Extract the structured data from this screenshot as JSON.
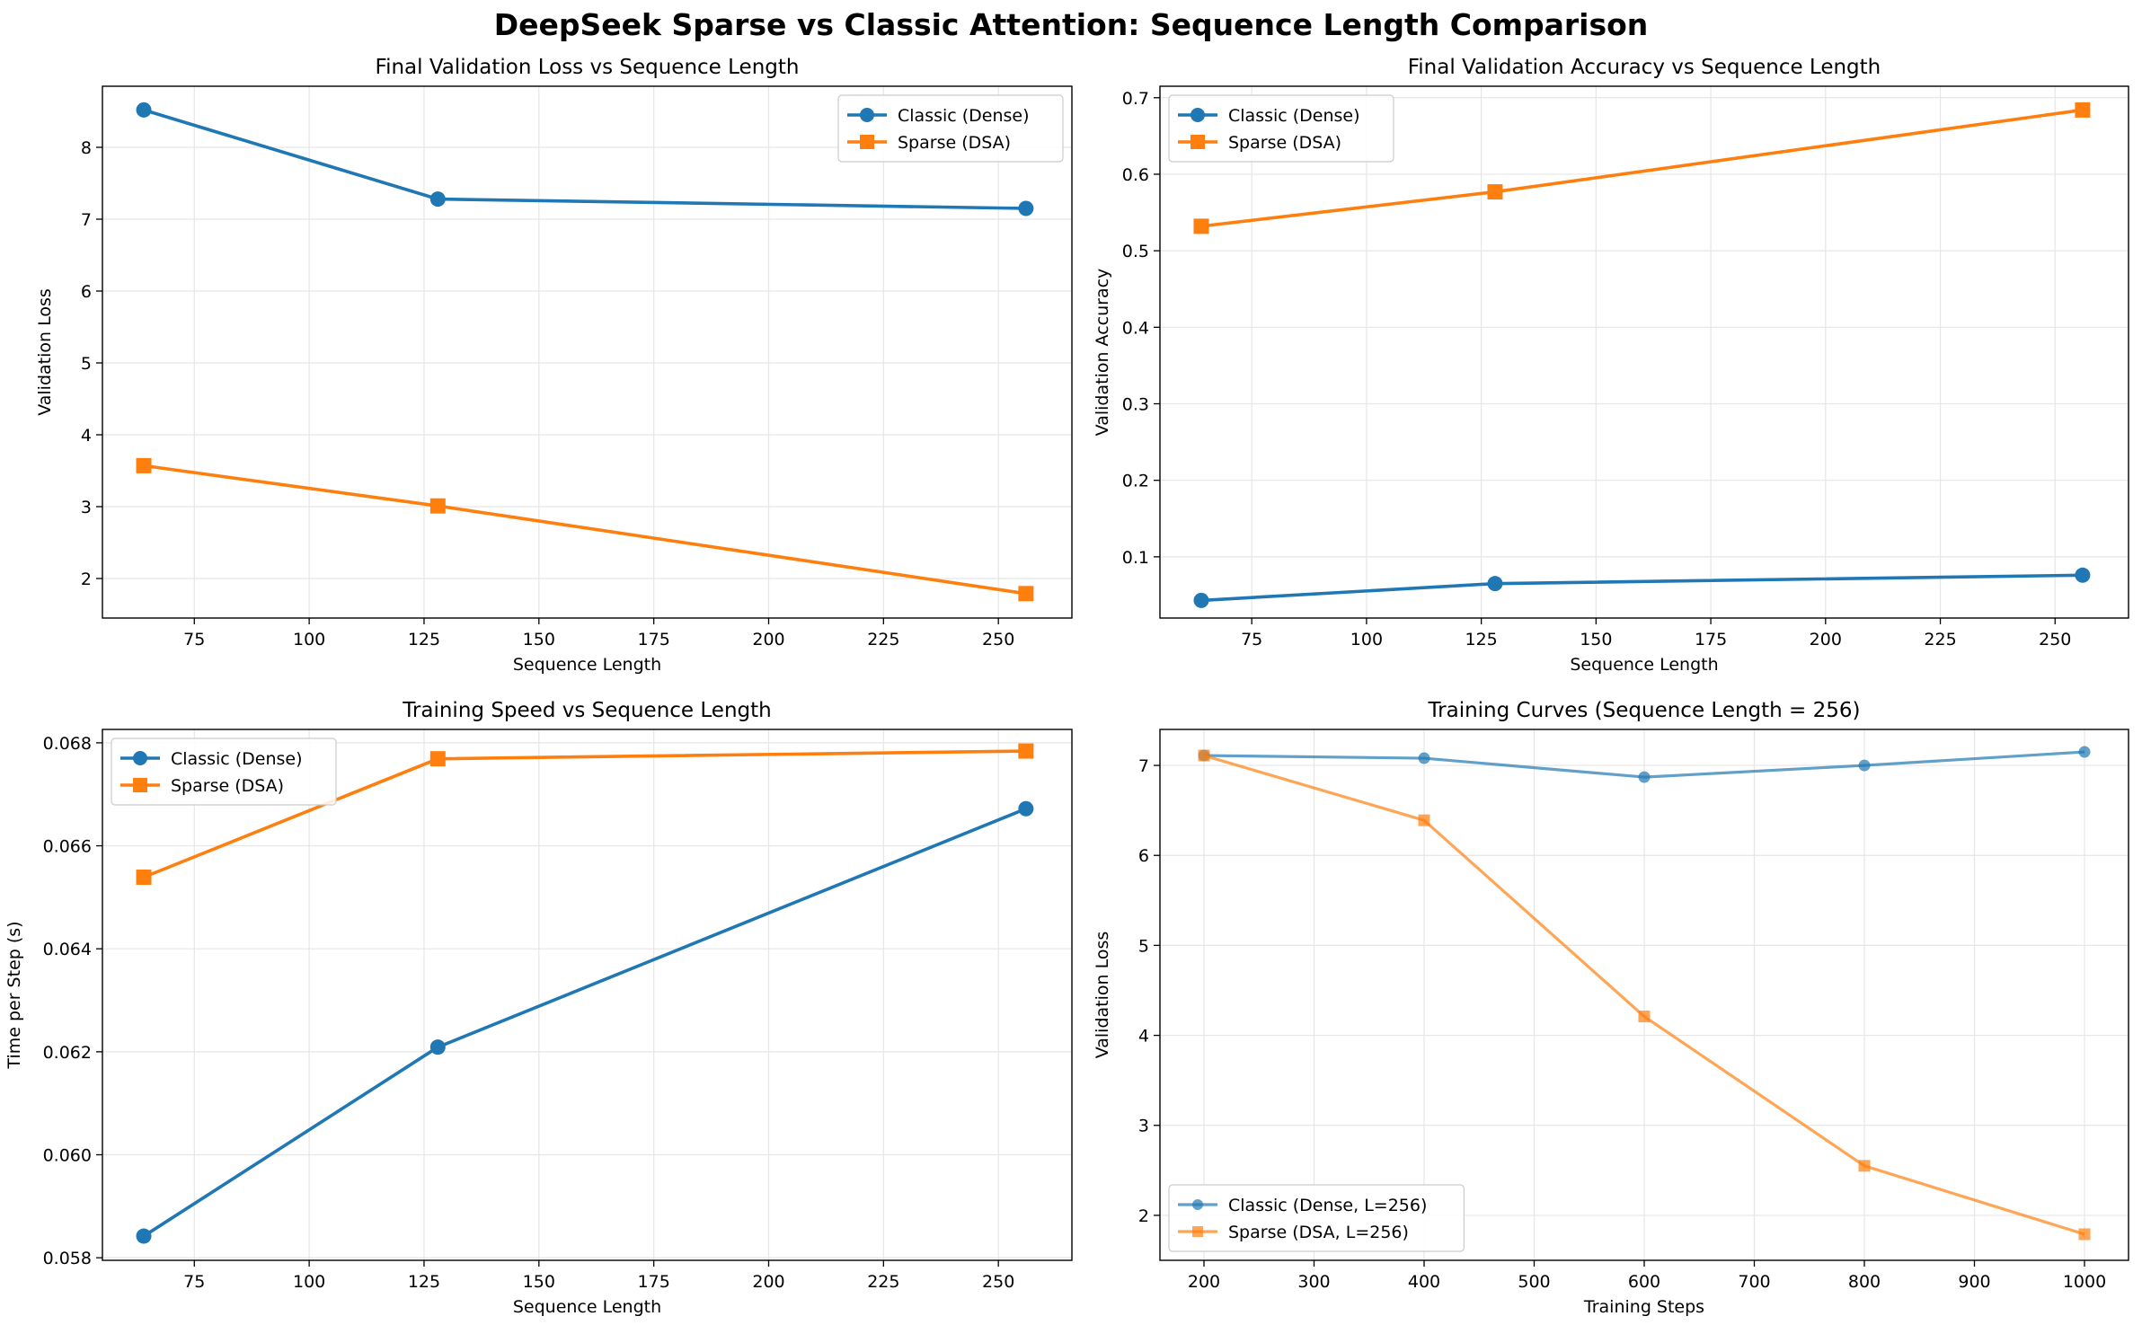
{
  "figure": {
    "title": "DeepSeek Sparse vs Classic Attention: Sequence Length Comparison"
  },
  "colors": {
    "classic": "#1f77b4",
    "sparse": "#ff7f0e",
    "grid": "#e6e6e6"
  },
  "chart_data": [
    {
      "type": "line",
      "title": "Final Validation Loss vs Sequence Length",
      "xlabel": "Sequence Length",
      "ylabel": "Validation Loss",
      "xlim": [
        55,
        266
      ],
      "ylim": [
        1.45,
        8.85
      ],
      "xticks": [
        75,
        100,
        125,
        150,
        175,
        200,
        225,
        250
      ],
      "yticks": [
        2,
        3,
        4,
        5,
        6,
        7,
        8
      ],
      "ytick_format": "0",
      "grid": true,
      "legend_position": "upper right",
      "series": [
        {
          "name": "Classic (Dense)",
          "marker": "circle",
          "x": [
            64,
            128,
            256
          ],
          "y": [
            8.52,
            7.28,
            7.15
          ]
        },
        {
          "name": "Sparse (DSA)",
          "marker": "square",
          "x": [
            64,
            128,
            256
          ],
          "y": [
            3.57,
            3.01,
            1.79
          ]
        }
      ]
    },
    {
      "type": "line",
      "title": "Final Validation Accuracy vs Sequence Length",
      "xlabel": "Sequence Length",
      "ylabel": "Validation Accuracy",
      "xlim": [
        55,
        266
      ],
      "ylim": [
        0.02,
        0.715
      ],
      "xticks": [
        75,
        100,
        125,
        150,
        175,
        200,
        225,
        250
      ],
      "yticks": [
        0.1,
        0.2,
        0.3,
        0.4,
        0.5,
        0.6,
        0.7
      ],
      "ytick_format": "1",
      "grid": true,
      "legend_position": "upper left",
      "series": [
        {
          "name": "Classic (Dense)",
          "marker": "circle",
          "x": [
            64,
            128,
            256
          ],
          "y": [
            0.043,
            0.065,
            0.076
          ]
        },
        {
          "name": "Sparse (DSA)",
          "marker": "square",
          "x": [
            64,
            128,
            256
          ],
          "y": [
            0.532,
            0.577,
            0.684
          ]
        }
      ]
    },
    {
      "type": "line",
      "title": "Training Speed vs Sequence Length",
      "xlabel": "Sequence Length",
      "ylabel": "Time per Step (s)",
      "xlim": [
        55,
        266
      ],
      "ylim": [
        0.05795,
        0.06826
      ],
      "xticks": [
        75,
        100,
        125,
        150,
        175,
        200,
        225,
        250
      ],
      "yticks": [
        0.058,
        0.06,
        0.062,
        0.064,
        0.066,
        0.068
      ],
      "ytick_format": "3",
      "grid": true,
      "legend_position": "upper left",
      "series": [
        {
          "name": "Classic (Dense)",
          "marker": "circle",
          "x": [
            64,
            128,
            256
          ],
          "y": [
            0.05842,
            0.06209,
            0.06672
          ]
        },
        {
          "name": "Sparse (DSA)",
          "marker": "square",
          "x": [
            64,
            128,
            256
          ],
          "y": [
            0.06539,
            0.06769,
            0.06784
          ]
        }
      ]
    },
    {
      "type": "line",
      "title": "Training Curves (Sequence Length = 256)",
      "xlabel": "Training Steps",
      "ylabel": "Validation Loss",
      "xlim": [
        160,
        1040
      ],
      "ylim": [
        1.5,
        7.4
      ],
      "xticks": [
        200,
        300,
        400,
        500,
        600,
        700,
        800,
        900,
        1000
      ],
      "yticks": [
        2,
        3,
        4,
        5,
        6,
        7
      ],
      "ytick_format": "0",
      "grid": true,
      "legend_position": "lower left",
      "alpha": 0.7,
      "series": [
        {
          "name": "Classic (Dense, L=256)",
          "marker": "circle",
          "x": [
            200,
            400,
            600,
            800,
            1000
          ],
          "y": [
            7.11,
            7.08,
            6.87,
            7.0,
            7.15
          ]
        },
        {
          "name": "Sparse (DSA, L=256)",
          "marker": "square",
          "x": [
            200,
            400,
            600,
            800,
            1000
          ],
          "y": [
            7.11,
            6.39,
            4.21,
            2.55,
            1.79
          ]
        }
      ]
    }
  ]
}
